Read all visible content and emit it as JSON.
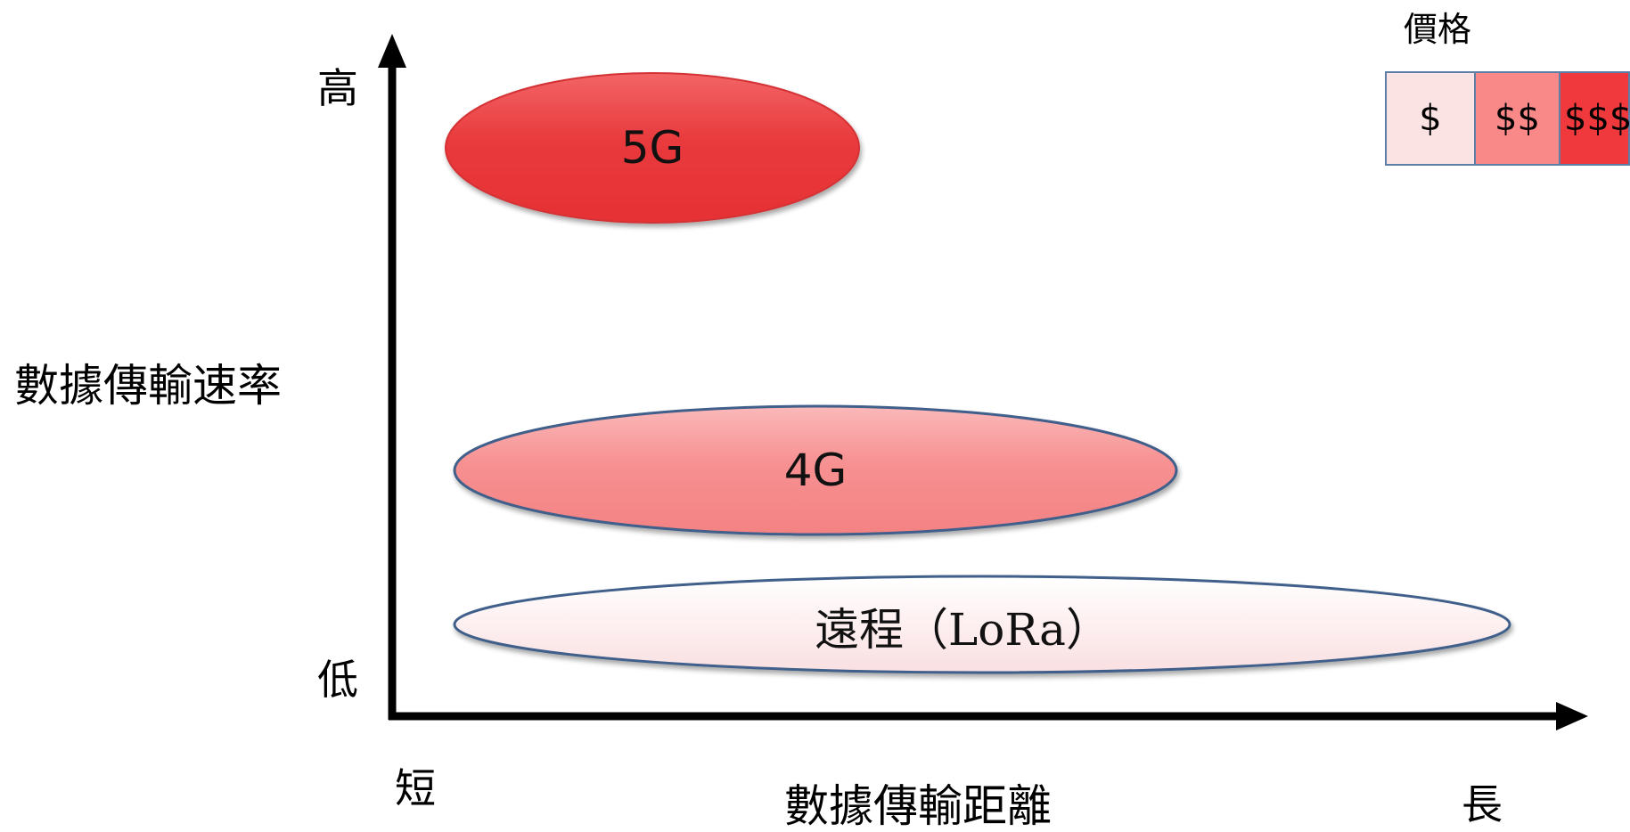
{
  "legend": {
    "title": "價格",
    "items": [
      {
        "label": "$",
        "color": "#fbe3e4"
      },
      {
        "label": "$$",
        "color": "#f98888"
      },
      {
        "label": "$$$",
        "color": "#f0393c"
      }
    ]
  },
  "y_axis": {
    "title": "數據傳輸速率",
    "high_label": "高",
    "low_label": "低"
  },
  "x_axis": {
    "title": "數據傳輸距離",
    "short_label": "短",
    "long_label": "長"
  },
  "technologies": [
    {
      "label": "5G",
      "color": "#ea3b3e"
    },
    {
      "label": "4G",
      "color": "#f79091"
    },
    {
      "label": "遠程（LoRa）",
      "color": "#fdeff0"
    }
  ]
}
